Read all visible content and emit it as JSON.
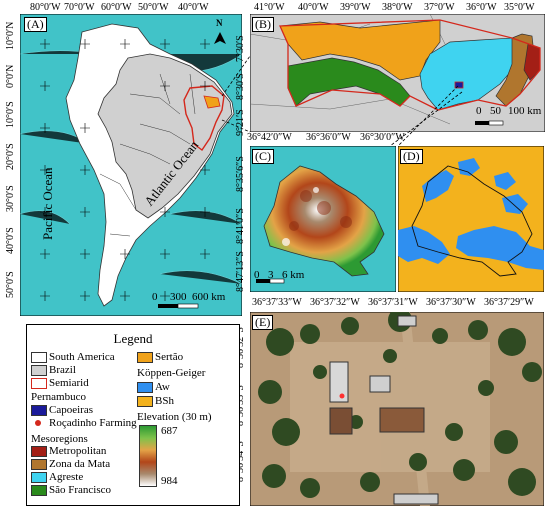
{
  "panels": {
    "A": "(A)",
    "B": "(B)",
    "C": "(C)",
    "D": "(D)",
    "E": "(E)"
  },
  "panelA": {
    "top_ticks": [
      "80°0′W",
      "70°0′W",
      "60°0′W",
      "50°0′W",
      "40°0′W"
    ],
    "left_ticks": [
      "10°0′N",
      "0°0′N",
      "10°0′S",
      "20°0′S",
      "30°0′S",
      "40°0′S",
      "50°0′S"
    ],
    "pacific": "Pacific Ocean",
    "atlantic": "Atlantic Ocean",
    "north": "N",
    "scale": [
      "0",
      "300",
      "600 km"
    ]
  },
  "panelB": {
    "top_ticks": [
      "41°0′W",
      "40°0′W",
      "39°0′W",
      "38°0′W",
      "37°0′W",
      "36°0′W",
      "35°0′W"
    ],
    "left_ticks": [
      "7°30′S",
      "8°30′S",
      "9°21′S"
    ],
    "scale": [
      "0",
      "50",
      "100 km"
    ]
  },
  "panelCD": {
    "top_ticks": [
      "36°42′0″W",
      "36°36′0″W",
      "36°30′0″W"
    ],
    "left_ticks": [
      "8°35′6″S",
      "8°41′0″S",
      "8°47′13″S"
    ],
    "scale": [
      "0",
      "3",
      "6 km"
    ]
  },
  "panelE": {
    "top_ticks": [
      "36°37′33″W",
      "36°37′32″W",
      "36°37′31″W",
      "36°37′30″W",
      "36°37′29″W"
    ],
    "left_ticks": [
      "8°36′32″S",
      "8°36′33″S",
      "8°36′34″S"
    ]
  },
  "legend": {
    "title": "Legend",
    "items": {
      "south_america": "South America",
      "brazil": "Brazil",
      "semiarid": "Semiarid",
      "pernambuco": "Pernambuco",
      "capoeiras": "Capoeiras",
      "rocadinho": "Roçadinho Farming",
      "mesoregions": "Mesoregions",
      "metropolitan": "Metropolitan",
      "zona_mata": "Zona da Mata",
      "agreste": "Agreste",
      "sao_francisco": "São Francisco",
      "sertao": "Sertão",
      "koppen": "Köppen-Geiger",
      "aw": "Aw",
      "bsh": "BSh",
      "elevation": "Elevation (30 m)",
      "elev_max": "687",
      "elev_min": "984"
    },
    "colors": {
      "metropolitan": "#a31f16",
      "zona_mata": "#b0762e",
      "agreste": "#3fd3f0",
      "sao_francisco": "#2a8a1c",
      "sertao": "#f0a21a",
      "aw": "#2f8ff0",
      "bsh": "#f3b21d",
      "capoeiras": "#1a1a9a",
      "ocean": "#41c3c8"
    }
  }
}
